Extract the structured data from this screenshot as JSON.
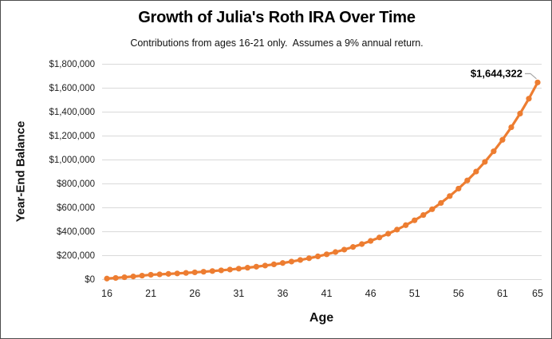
{
  "chart_data": {
    "type": "line",
    "title": "Growth of Julia's Roth IRA Over Time",
    "subtitle": "Contributions from ages 16-21 only.  Assumes a 9% annual return.",
    "xlabel": "Age",
    "ylabel": "Year-End Balance",
    "xlim": [
      16,
      65
    ],
    "ylim": [
      0,
      1800000
    ],
    "x_ticks": [
      16,
      21,
      26,
      31,
      36,
      41,
      46,
      51,
      56,
      61,
      65
    ],
    "y_tick_values": [
      0,
      200000,
      400000,
      600000,
      800000,
      1000000,
      1200000,
      1400000,
      1600000,
      1800000
    ],
    "y_tick_labels": [
      "$0",
      "$200,000",
      "$400,000",
      "$600,000",
      "$800,000",
      "$1,000,000",
      "$1,200,000",
      "$1,400,000",
      "$1,600,000",
      "$1,800,000"
    ],
    "grid": "horizontal",
    "legend": "none",
    "series": [
      {
        "name": "Year-End Balance",
        "color": "#ED7D31",
        "marker": "circle",
        "x": [
          16,
          17,
          18,
          19,
          20,
          21,
          22,
          23,
          24,
          25,
          26,
          27,
          28,
          29,
          30,
          31,
          32,
          33,
          34,
          35,
          36,
          37,
          38,
          39,
          40,
          41,
          42,
          43,
          44,
          45,
          46,
          47,
          48,
          49,
          50,
          51,
          52,
          53,
          54,
          55,
          56,
          57,
          58,
          59,
          60,
          61,
          62,
          63,
          64,
          65
        ],
        "values": [
          4930,
          10304,
          16161,
          22546,
          29505,
          37087,
          40425,
          44063,
          48029,
          52351,
          57063,
          62199,
          67796,
          73898,
          80549,
          87798,
          95700,
          104313,
          113701,
          123934,
          135089,
          147247,
          160499,
          174944,
          190689,
          207851,
          226557,
          246947,
          269173,
          293398,
          319804,
          348586,
          379959,
          414155,
          451429,
          492058,
          536343,
          584614,
          637229,
          694580,
          757092,
          825231,
          899501,
          980456,
          1068697,
          1164880,
          1269719,
          1383994,
          1508554,
          1644322
        ]
      }
    ],
    "annotation": {
      "text": "$1,644,322",
      "x": 65,
      "y": 1644322
    }
  },
  "colors": {
    "line": "#ED7D31",
    "gridline": "#D9D9D9",
    "tick_text": "#1f1f1f",
    "title_text": "#000000",
    "leader_line": "#A6A6A6",
    "frame_border": "#4d4d4d",
    "background": "#FFFFFF"
  }
}
